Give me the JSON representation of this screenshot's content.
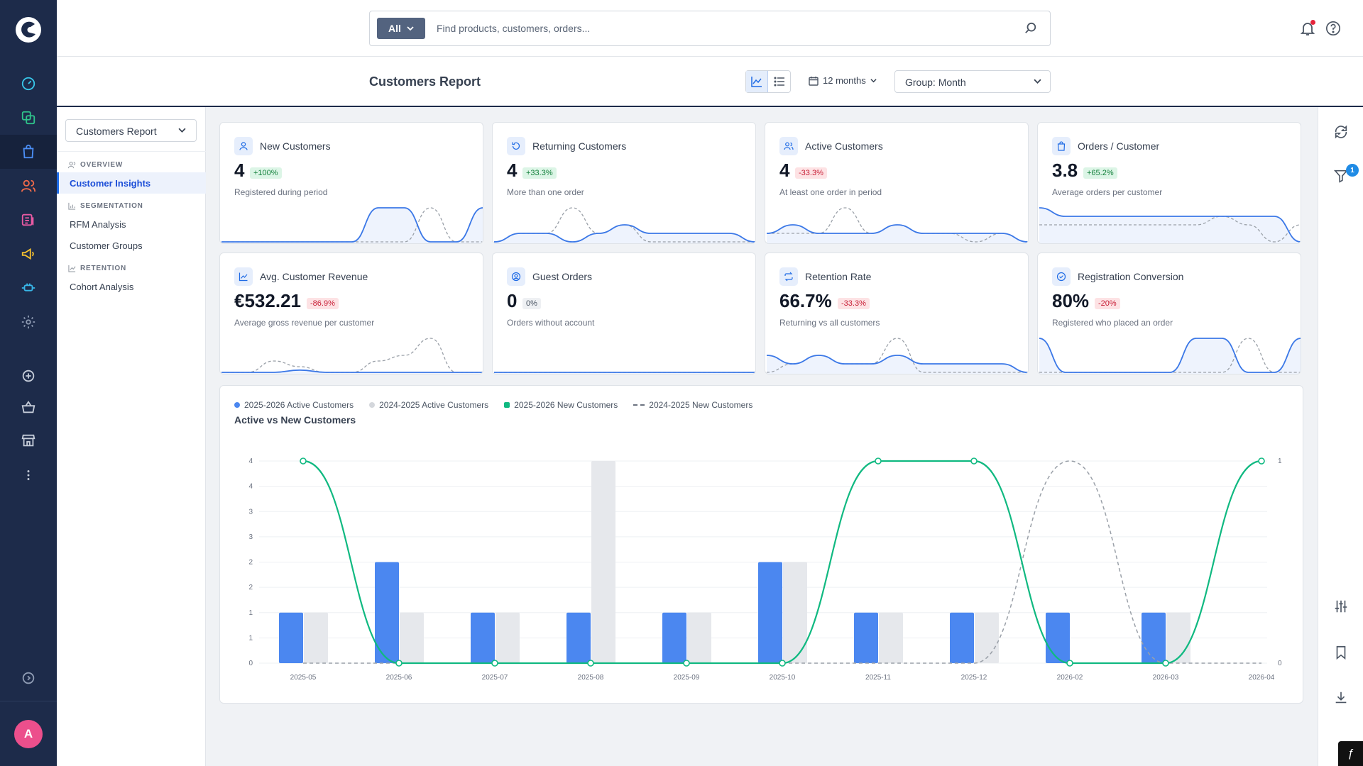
{
  "search": {
    "scope": "All",
    "placeholder": "Find products, customers, orders..."
  },
  "header": {
    "title": "Customers Report",
    "period": "12 months",
    "group_by": "Group: Month"
  },
  "sidebar": {
    "report_select": "Customers Report",
    "sections": [
      {
        "label": "OVERVIEW",
        "items": [
          "Customer Insights"
        ]
      },
      {
        "label": "SEGMENTATION",
        "items": [
          "RFM Analysis",
          "Customer Groups"
        ]
      },
      {
        "label": "RETENTION",
        "items": [
          "Cohort Analysis"
        ]
      }
    ]
  },
  "user": {
    "avatar_initial": "A"
  },
  "filters": {
    "badge_count": "1"
  },
  "colors": {
    "primary": "#1f6be5",
    "bar_current": "#4b87f0",
    "bar_previous": "#e6e8ec",
    "line_new": "#10b981",
    "rail": "#1d2b4a"
  },
  "kpis": [
    {
      "label": "New Customers",
      "value": "4",
      "delta": "+100%",
      "trend": "up",
      "sub": "Registered during period",
      "icon": "user-icon"
    },
    {
      "label": "Returning Customers",
      "value": "4",
      "delta": "+33.3%",
      "trend": "up",
      "sub": "More than one order",
      "icon": "refresh-icon"
    },
    {
      "label": "Active Customers",
      "value": "4",
      "delta": "-33.3%",
      "trend": "down",
      "sub": "At least one order in period",
      "icon": "users-icon"
    },
    {
      "label": "Orders / Customer",
      "value": "3.8",
      "delta": "+65.2%",
      "trend": "up",
      "sub": "Average orders per customer",
      "icon": "bag-icon"
    },
    {
      "label": "Avg. Customer Revenue",
      "value": "€532.21",
      "delta": "-86.9%",
      "trend": "down",
      "sub": "Average gross revenue per customer",
      "icon": "trend-icon"
    },
    {
      "label": "Guest Orders",
      "value": "0",
      "delta": "0%",
      "trend": "flat",
      "sub": "Orders without account",
      "icon": "guest-icon"
    },
    {
      "label": "Retention Rate",
      "value": "66.7%",
      "delta": "-33.3%",
      "trend": "down",
      "sub": "Returning vs all customers",
      "icon": "repeat-icon"
    },
    {
      "label": "Registration Conversion",
      "value": "80%",
      "delta": "-20%",
      "trend": "down",
      "sub": "Registered who placed an order",
      "icon": "check-circle-icon"
    }
  ],
  "chart_data": {
    "type": "bar",
    "title": "Active vs New Customers",
    "categories": [
      "2025-05",
      "2025-06",
      "2025-07",
      "2025-08",
      "2025-09",
      "2025-10",
      "2025-11",
      "2025-12",
      "2026-02",
      "2026-03",
      "2026-04"
    ],
    "left_ticks": [
      "0",
      "1",
      "1",
      "2",
      "2",
      "3",
      "3",
      "4",
      "4"
    ],
    "right_ticks": [
      "0",
      "1"
    ],
    "ylim_left": [
      0,
      4
    ],
    "ylim_right": [
      0,
      1
    ],
    "grid": true,
    "legend_position": "top-left",
    "series": [
      {
        "name": "2025-2026 Active Customers",
        "kind": "bar",
        "axis": "left",
        "color": "#4b87f0",
        "values": [
          1,
          2,
          1,
          1,
          1,
          2,
          1,
          1,
          1,
          1,
          null
        ]
      },
      {
        "name": "2024-2025 Active Customers",
        "kind": "bar",
        "axis": "left",
        "color": "#e6e8ec",
        "values": [
          1,
          1,
          1,
          4,
          1,
          2,
          1,
          1,
          0,
          1,
          null
        ]
      },
      {
        "name": "2025-2026 New Customers",
        "kind": "line",
        "axis": "right",
        "color": "#10b981",
        "values": [
          1,
          0,
          0,
          0,
          0,
          0,
          1,
          1,
          0,
          0,
          1
        ]
      },
      {
        "name": "2024-2025 New Customers",
        "kind": "line-dashed",
        "axis": "right",
        "color": "#9aa0a8",
        "values": [
          0,
          0,
          0,
          0,
          0,
          0,
          0,
          0,
          1,
          0,
          0
        ]
      }
    ]
  }
}
